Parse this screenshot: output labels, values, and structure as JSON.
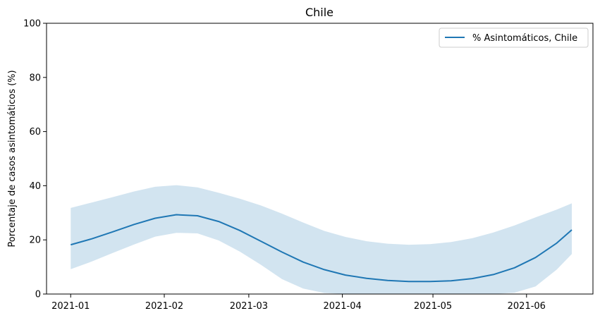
{
  "chart_data": {
    "type": "line",
    "title": "Chile",
    "xlabel": "",
    "ylabel": "Porcentaje de casos asintomáticos (%)",
    "ylim": [
      0,
      100
    ],
    "xlim": [
      "2020-12-24",
      "2021-06-23"
    ],
    "yticks": [
      0,
      20,
      40,
      60,
      80,
      100
    ],
    "xticks": [
      "2021-01-01",
      "2021-02-01",
      "2021-03-01",
      "2021-04-01",
      "2021-05-01",
      "2021-06-01"
    ],
    "xtick_labels": [
      "2021-01",
      "2021-02",
      "2021-03",
      "2021-04",
      "2021-05",
      "2021-06"
    ],
    "grid": false,
    "legend_position": "top-right",
    "series": [
      {
        "name": "% Asintomáticos, Chile",
        "color": "#1f77b4",
        "band_color": "#1f77b4",
        "x": [
          "2021-01-01",
          "2021-01-08",
          "2021-01-15",
          "2021-01-22",
          "2021-01-29",
          "2021-02-05",
          "2021-02-12",
          "2021-02-19",
          "2021-02-26",
          "2021-03-05",
          "2021-03-12",
          "2021-03-19",
          "2021-03-26",
          "2021-04-02",
          "2021-04-09",
          "2021-04-16",
          "2021-04-23",
          "2021-04-30",
          "2021-05-07",
          "2021-05-14",
          "2021-05-21",
          "2021-05-28",
          "2021-06-04",
          "2021-06-11",
          "2021-06-16"
        ],
        "y": [
          18.2,
          20.4,
          23.0,
          25.7,
          28.0,
          29.3,
          28.9,
          26.8,
          23.5,
          19.5,
          15.5,
          11.8,
          9.0,
          7.0,
          5.8,
          5.0,
          4.6,
          4.6,
          4.9,
          5.7,
          7.2,
          9.7,
          13.5,
          18.8,
          23.7
        ],
        "lower": [
          9.2,
          12.0,
          15.2,
          18.3,
          21.2,
          22.6,
          22.4,
          19.8,
          15.7,
          10.8,
          5.5,
          2.0,
          0.4,
          0.0,
          0.0,
          0.0,
          0.0,
          0.0,
          0.0,
          0.0,
          0.0,
          0.5,
          2.8,
          9.0,
          14.8
        ],
        "upper": [
          31.8,
          33.8,
          35.8,
          37.9,
          39.6,
          40.2,
          39.4,
          37.4,
          35.2,
          32.7,
          29.7,
          26.4,
          23.3,
          21.1,
          19.5,
          18.6,
          18.2,
          18.4,
          19.2,
          20.6,
          22.7,
          25.3,
          28.3,
          31.2,
          33.5
        ]
      }
    ]
  }
}
